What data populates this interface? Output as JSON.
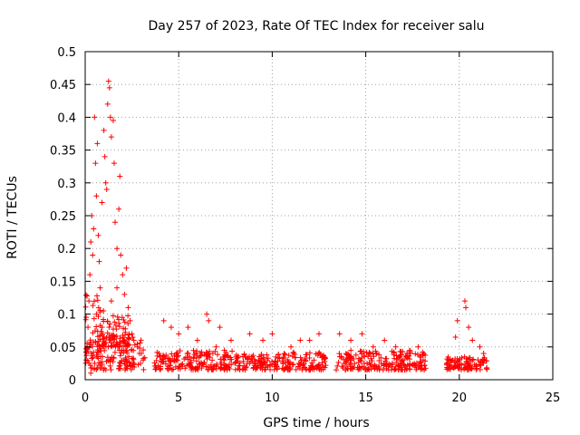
{
  "chart_data": {
    "type": "scatter",
    "title": "Day 257 of 2023, Rate Of TEC Index for receiver salu",
    "xlabel": "GPS time / hours",
    "ylabel": "ROTI / TECUs",
    "xlim": [
      0,
      25
    ],
    "ylim": [
      0,
      0.5
    ],
    "xticks": [
      0,
      5,
      10,
      15,
      20,
      25
    ],
    "xtick_labels": [
      "0",
      "5",
      "10",
      "15",
      "20",
      "25"
    ],
    "yticks": [
      0,
      0.05,
      0.1,
      0.15,
      0.2,
      0.25,
      0.3,
      0.35,
      0.4,
      0.45,
      0.5
    ],
    "ytick_labels": [
      "0",
      "0.05",
      "0.1",
      "0.15",
      "0.2",
      "0.25",
      "0.3",
      "0.35",
      "0.4",
      "0.45",
      "0.5"
    ],
    "grid": true,
    "marker": "+",
    "color": "#ff0000",
    "series": [
      {
        "name": "ROTI",
        "points": [
          [
            0.05,
            0.03
          ],
          [
            0.1,
            0.05
          ],
          [
            0.15,
            0.08
          ],
          [
            0.2,
            0.12
          ],
          [
            0.25,
            0.16
          ],
          [
            0.3,
            0.21
          ],
          [
            0.35,
            0.25
          ],
          [
            0.4,
            0.19
          ],
          [
            0.45,
            0.23
          ],
          [
            0.5,
            0.4
          ],
          [
            0.55,
            0.33
          ],
          [
            0.6,
            0.28
          ],
          [
            0.65,
            0.36
          ],
          [
            0.7,
            0.22
          ],
          [
            0.75,
            0.18
          ],
          [
            0.8,
            0.14
          ],
          [
            0.9,
            0.27
          ],
          [
            1.0,
            0.38
          ],
          [
            1.05,
            0.34
          ],
          [
            1.1,
            0.3
          ],
          [
            1.15,
            0.29
          ],
          [
            1.2,
            0.42
          ],
          [
            1.25,
            0.455
          ],
          [
            1.3,
            0.445
          ],
          [
            1.35,
            0.4
          ],
          [
            1.4,
            0.37
          ],
          [
            1.5,
            0.395
          ],
          [
            1.55,
            0.33
          ],
          [
            1.6,
            0.24
          ],
          [
            1.7,
            0.2
          ],
          [
            1.8,
            0.26
          ],
          [
            1.85,
            0.31
          ],
          [
            1.9,
            0.19
          ],
          [
            2.0,
            0.16
          ],
          [
            2.1,
            0.13
          ],
          [
            2.2,
            0.17
          ],
          [
            2.3,
            0.11
          ],
          [
            2.4,
            0.09
          ],
          [
            2.5,
            0.07
          ],
          [
            0.3,
            0.01
          ],
          [
            0.6,
            0.1
          ],
          [
            0.9,
            0.08
          ],
          [
            1.4,
            0.12
          ],
          [
            1.7,
            0.14
          ],
          [
            2.6,
            0.06
          ],
          [
            2.8,
            0.05
          ],
          [
            3.0,
            0.04
          ],
          [
            3.1,
            0.03
          ],
          [
            4.2,
            0.09
          ],
          [
            4.6,
            0.08
          ],
          [
            5.0,
            0.07
          ],
          [
            5.5,
            0.08
          ],
          [
            6.0,
            0.06
          ],
          [
            6.5,
            0.1
          ],
          [
            6.6,
            0.09
          ],
          [
            7.0,
            0.05
          ],
          [
            7.2,
            0.08
          ],
          [
            7.8,
            0.06
          ],
          [
            8.8,
            0.07
          ],
          [
            9.5,
            0.06
          ],
          [
            10.0,
            0.07
          ],
          [
            11.0,
            0.05
          ],
          [
            11.5,
            0.06
          ],
          [
            12.0,
            0.06
          ],
          [
            12.5,
            0.07
          ],
          [
            13.6,
            0.07
          ],
          [
            14.2,
            0.06
          ],
          [
            14.8,
            0.07
          ],
          [
            15.4,
            0.05
          ],
          [
            16.0,
            0.06
          ],
          [
            16.6,
            0.05
          ],
          [
            17.2,
            0.04
          ],
          [
            17.8,
            0.05
          ],
          [
            19.4,
            0.03
          ],
          [
            19.8,
            0.065
          ],
          [
            19.9,
            0.09
          ],
          [
            20.3,
            0.12
          ],
          [
            20.35,
            0.11
          ],
          [
            20.5,
            0.08
          ],
          [
            20.7,
            0.06
          ],
          [
            21.1,
            0.05
          ],
          [
            21.3,
            0.04
          ]
        ]
      }
    ],
    "dense_bands": [
      {
        "x0": 0.0,
        "x1": 3.2,
        "y0": 0.015,
        "y1": 0.065
      },
      {
        "x0": 0.0,
        "x1": 1.0,
        "y0": 0.04,
        "y1": 0.13
      },
      {
        "x0": 1.0,
        "x1": 2.4,
        "y0": 0.05,
        "y1": 0.1
      },
      {
        "x0": 3.7,
        "x1": 7.9,
        "y0": 0.015,
        "y1": 0.045
      },
      {
        "x0": 8.0,
        "x1": 10.4,
        "y0": 0.015,
        "y1": 0.04
      },
      {
        "x0": 10.5,
        "x1": 12.9,
        "y0": 0.015,
        "y1": 0.042
      },
      {
        "x0": 13.4,
        "x1": 18.2,
        "y0": 0.015,
        "y1": 0.045
      },
      {
        "x0": 19.3,
        "x1": 21.5,
        "y0": 0.015,
        "y1": 0.035
      }
    ]
  }
}
